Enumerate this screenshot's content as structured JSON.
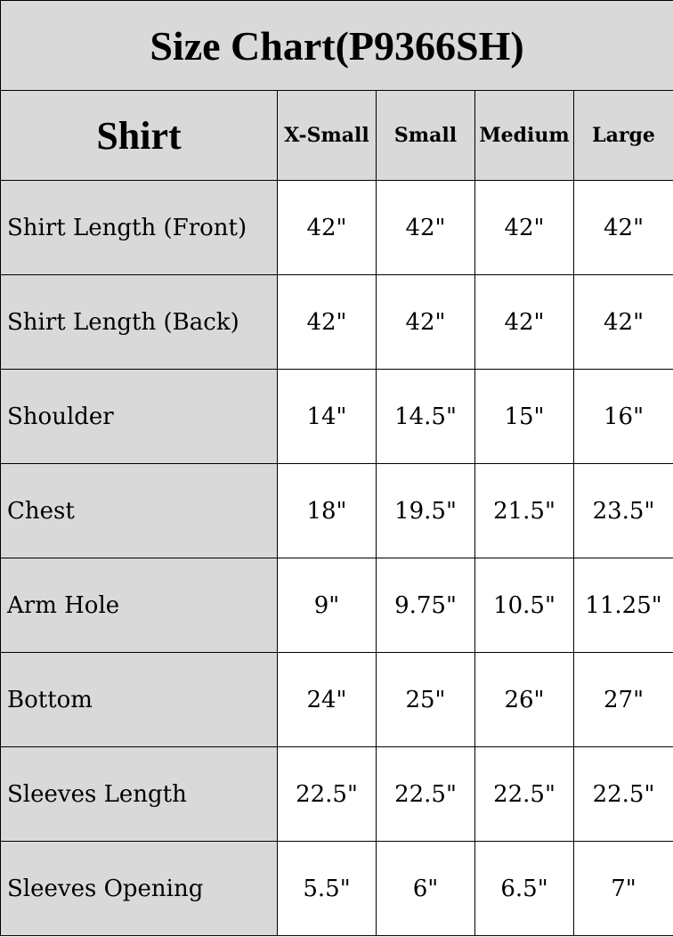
{
  "title": "Size Chart(P9366SH)",
  "header": {
    "section": "Shirt",
    "sizes": [
      "X-Small",
      "Small",
      "Medium",
      "Large"
    ]
  },
  "rows": [
    {
      "label": "Shirt Length (Front)",
      "values": [
        "42\"",
        "42\"",
        "42\"",
        "42\""
      ]
    },
    {
      "label": "Shirt Length (Back)",
      "values": [
        "42\"",
        "42\"",
        "42\"",
        "42\""
      ]
    },
    {
      "label": "Shoulder",
      "values": [
        "14\"",
        "14.5\"",
        "15\"",
        "16\""
      ]
    },
    {
      "label": "Chest",
      "values": [
        "18\"",
        "19.5\"",
        "21.5\"",
        "23.5\""
      ]
    },
    {
      "label": "Arm Hole",
      "values": [
        "9\"",
        "9.75\"",
        "10.5\"",
        "11.25\""
      ]
    },
    {
      "label": "Bottom",
      "values": [
        "24\"",
        "25\"",
        "26\"",
        "27\""
      ]
    },
    {
      "label": "Sleeves Length",
      "values": [
        "22.5\"",
        "22.5\"",
        "22.5\"",
        "22.5\""
      ]
    },
    {
      "label": "Sleeves Opening",
      "values": [
        "5.5\"",
        "6\"",
        "6.5\"",
        "7\""
      ]
    }
  ],
  "colors": {
    "header_bg": "#d9d9d9",
    "cell_bg": "#ffffff",
    "border": "#000000"
  }
}
